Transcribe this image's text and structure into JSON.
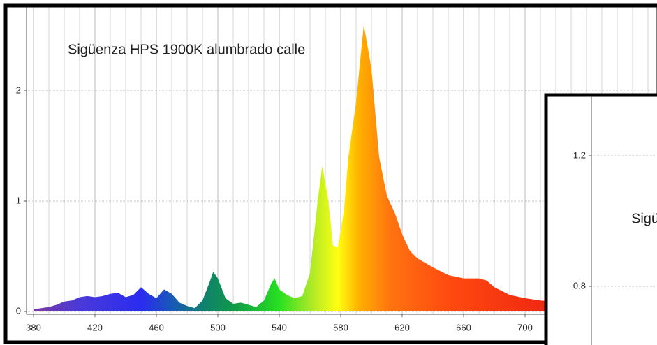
{
  "chart_data": [
    {
      "type": "area",
      "title": "Sigüenza HPS  1900K  alumbrado calle",
      "x": [
        380,
        385,
        390,
        395,
        400,
        405,
        410,
        415,
        420,
        425,
        430,
        435,
        440,
        445,
        450,
        455,
        460,
        465,
        470,
        475,
        480,
        485,
        490,
        495,
        497,
        500,
        505,
        510,
        515,
        520,
        525,
        530,
        535,
        537,
        540,
        545,
        550,
        555,
        560,
        565,
        568,
        572,
        575,
        578,
        582,
        585,
        590,
        595,
        600,
        605,
        610,
        615,
        620,
        625,
        630,
        640,
        650,
        660,
        670,
        675,
        680,
        690,
        700,
        710,
        720
      ],
      "values": [
        0.02,
        0.03,
        0.04,
        0.06,
        0.09,
        0.1,
        0.13,
        0.14,
        0.13,
        0.14,
        0.16,
        0.17,
        0.13,
        0.15,
        0.22,
        0.16,
        0.12,
        0.2,
        0.16,
        0.08,
        0.05,
        0.03,
        0.1,
        0.28,
        0.36,
        0.3,
        0.12,
        0.07,
        0.08,
        0.06,
        0.04,
        0.1,
        0.26,
        0.3,
        0.2,
        0.15,
        0.12,
        0.14,
        0.35,
        1.0,
        1.32,
        1.0,
        0.6,
        0.58,
        0.9,
        1.4,
        1.9,
        2.6,
        2.2,
        1.4,
        1.05,
        0.9,
        0.7,
        0.55,
        0.48,
        0.4,
        0.33,
        0.3,
        0.3,
        0.28,
        0.22,
        0.15,
        0.12,
        0.1,
        0.09
      ],
      "gradient": [
        {
          "at": 380,
          "color": "#7a3aa0"
        },
        {
          "at": 410,
          "color": "#4a3ad8"
        },
        {
          "at": 450,
          "color": "#2a2cf0"
        },
        {
          "at": 470,
          "color": "#1858b8"
        },
        {
          "at": 490,
          "color": "#108070"
        },
        {
          "at": 510,
          "color": "#109848"
        },
        {
          "at": 540,
          "color": "#28e020"
        },
        {
          "at": 560,
          "color": "#a8e828"
        },
        {
          "at": 578,
          "color": "#ffff10"
        },
        {
          "at": 592,
          "color": "#ffb000"
        },
        {
          "at": 612,
          "color": "#ff7410"
        },
        {
          "at": 650,
          "color": "#ff4a10"
        },
        {
          "at": 710,
          "color": "#f02a10"
        }
      ],
      "xlim": [
        375,
        785
      ],
      "ylim": [
        -0.02,
        2.73
      ],
      "xticks": [
        380,
        420,
        460,
        500,
        540,
        580,
        620,
        660,
        700
      ],
      "xminor": [
        390,
        400,
        410,
        430,
        440,
        450,
        470,
        480,
        490,
        510,
        520,
        530,
        550,
        560,
        570,
        590,
        600,
        610,
        630,
        640,
        650,
        670,
        680,
        690,
        710,
        720,
        730,
        740,
        750,
        760,
        770,
        780
      ],
      "yticks": [
        0,
        1,
        2
      ],
      "grid": true
    },
    {
      "type": "area",
      "title": "Sigü",
      "ylim": [
        0.62,
        1.38
      ],
      "yticks": [
        0.8,
        1.2
      ],
      "grid": true
    }
  ]
}
